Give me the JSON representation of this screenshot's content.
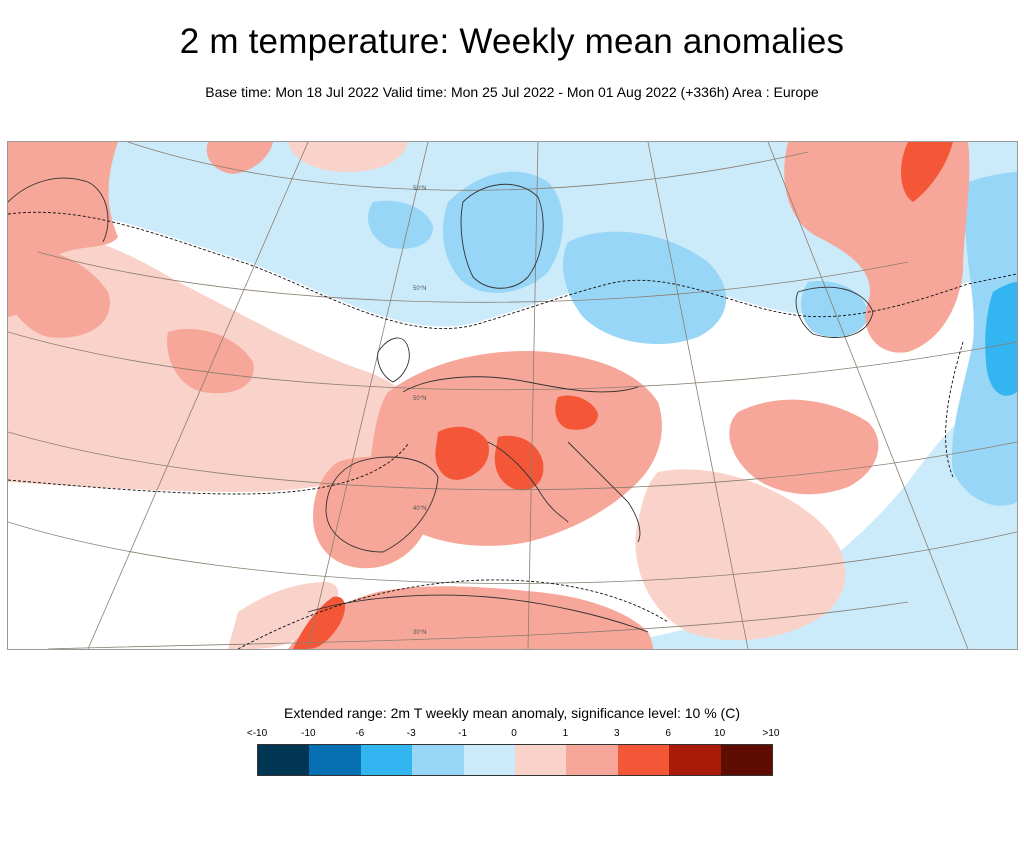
{
  "header": {
    "title": "2 m temperature: Weekly mean anomalies",
    "subtitle": "Base time: Mon 18 Jul 2022 Valid time: Mon 25 Jul 2022 - Mon 01 Aug 2022 (+336h) Area : Europe"
  },
  "map": {
    "area": "Europe",
    "latitude_labels": [
      "50°N",
      "50°N",
      "50°N",
      "40°N",
      "30°N"
    ]
  },
  "legend": {
    "title": "Extended range: 2m T weekly mean anomaly, significance level: 10 % (C)",
    "tick_labels": [
      "<-10",
      "-10",
      "-6",
      "-3",
      "-1",
      "0",
      "1",
      "3",
      "6",
      "10",
      ">10"
    ],
    "colors": [
      "#003654",
      "#0670b3",
      "#32b5f1",
      "#98d6f7",
      "#cbebfb",
      "#f9d2ca",
      "#f7a799",
      "#f45737",
      "#aa1a09",
      "#5f0d03"
    ]
  }
}
